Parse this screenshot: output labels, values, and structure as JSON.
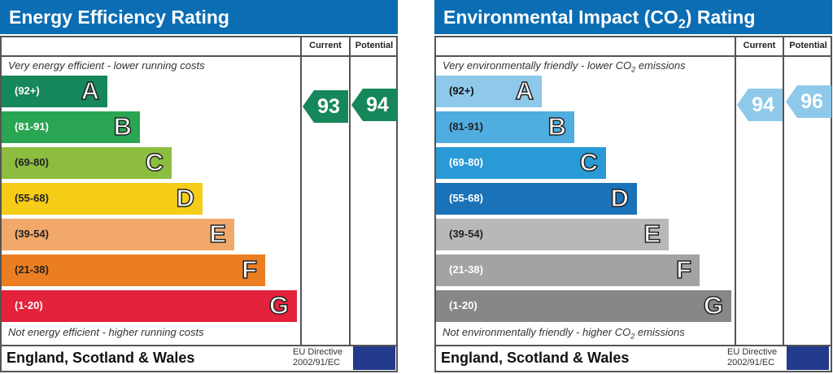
{
  "chart_data": [
    {
      "type": "table",
      "title": "Energy Efficiency Rating",
      "columns": [
        "Current",
        "Potential"
      ],
      "top_note": "Very energy efficient - lower running costs",
      "bottom_note": "Not energy efficient - higher running costs",
      "bands": [
        {
          "range": "(92+)",
          "letter": "A",
          "color": "#16875a"
        },
        {
          "range": "(81-91)",
          "letter": "B",
          "color": "#2aa553"
        },
        {
          "range": "(69-80)",
          "letter": "C",
          "color": "#8cbd40"
        },
        {
          "range": "(55-68)",
          "letter": "D",
          "color": "#f5cc16"
        },
        {
          "range": "(39-54)",
          "letter": "E",
          "color": "#f2a86b"
        },
        {
          "range": "(21-38)",
          "letter": "F",
          "color": "#ec7e22"
        },
        {
          "range": "(1-20)",
          "letter": "G",
          "color": "#e3223b"
        }
      ],
      "current": 93,
      "potential": 94,
      "current_color": "#16875a",
      "potential_color": "#16875a"
    },
    {
      "type": "table",
      "title": "Environmental Impact (CO",
      "title_sub": "2",
      "title_end": ") Rating",
      "columns": [
        "Current",
        "Potential"
      ],
      "top_note": "Very environmentally friendly - lower CO",
      "top_note_end": " emissions",
      "bottom_note": "Not environmentally friendly - higher CO",
      "bottom_note_end": " emissions",
      "bands": [
        {
          "range": "(92+)",
          "letter": "A",
          "color": "#8ec9ea"
        },
        {
          "range": "(81-91)",
          "letter": "B",
          "color": "#4fade0"
        },
        {
          "range": "(69-80)",
          "letter": "C",
          "color": "#2a9ad6"
        },
        {
          "range": "(55-68)",
          "letter": "D",
          "color": "#1a72b8"
        },
        {
          "range": "(39-54)",
          "letter": "E",
          "color": "#b8b8b8"
        },
        {
          "range": "(21-38)",
          "letter": "F",
          "color": "#a3a3a3"
        },
        {
          "range": "(1-20)",
          "letter": "G",
          "color": "#878787"
        }
      ],
      "current": 94,
      "potential": 96,
      "current_color": "#8ec9ea",
      "potential_color": "#8ec9ea"
    }
  ],
  "footer": {
    "region": "England, Scotland & Wales",
    "eu_line1": "EU Directive",
    "eu_line2": "2002/91/EC"
  }
}
